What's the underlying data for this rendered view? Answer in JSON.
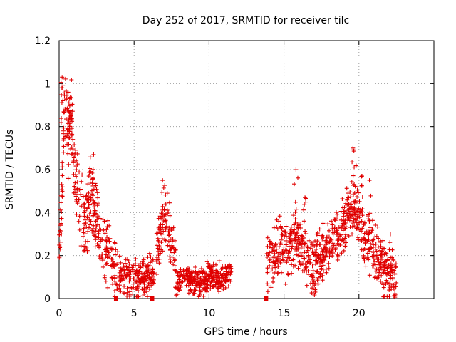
{
  "chart_data": {
    "type": "scatter",
    "title": "Day 252 of 2017, SRMTID for receiver tilc",
    "xlabel": "GPS time / hours",
    "ylabel": "SRMTID / TECUs",
    "xlim": [
      0,
      25
    ],
    "ylim": [
      0,
      1.2
    ],
    "x_ticks": [
      0,
      5,
      10,
      15,
      20
    ],
    "x_tick_labels": [
      "0",
      "5",
      "10",
      "15",
      "20"
    ],
    "y_ticks": [
      0,
      0.2,
      0.4,
      0.6,
      0.8,
      1,
      1.2
    ],
    "y_tick_labels": [
      "0",
      "0.2",
      "0.4",
      "0.6",
      "0.8",
      "1",
      "1.2"
    ],
    "grid": true,
    "marker": "plus",
    "color": "#e00000",
    "series": [
      {
        "name": "SRMTID",
        "segments": [
          {
            "x": [
              0.0,
              0.2,
              0.4,
              0.6,
              0.8,
              1.0,
              1.2,
              1.5,
              1.8,
              2.1,
              2.4,
              2.7,
              3.0,
              3.3,
              3.6,
              3.9
            ],
            "y": [
              0.2,
              0.55,
              0.95,
              0.72,
              0.88,
              0.6,
              0.5,
              0.42,
              0.35,
              0.5,
              0.38,
              0.3,
              0.25,
              0.2,
              0.15,
              0.12
            ],
            "spread": 0.12
          },
          {
            "x": [
              4.0,
              4.5,
              5.0,
              5.5,
              6.0,
              6.4
            ],
            "y": [
              0.12,
              0.1,
              0.1,
              0.09,
              0.11,
              0.1
            ],
            "spread": 0.07
          },
          {
            "x": [
              6.5,
              6.8,
              7.0,
              7.2,
              7.5,
              7.8
            ],
            "y": [
              0.2,
              0.3,
              0.4,
              0.35,
              0.25,
              0.12
            ],
            "spread": 0.1
          },
          {
            "x": [
              7.8,
              8.5,
              9.2,
              10.0,
              10.8,
              11.5
            ],
            "y": [
              0.08,
              0.09,
              0.07,
              0.1,
              0.1,
              0.12
            ],
            "spread": 0.05
          },
          {
            "x": [
              13.8,
              14.3,
              14.8,
              15.3,
              15.8,
              16.2,
              16.6,
              17.0,
              17.5,
              18.0
            ],
            "y": [
              0.18,
              0.2,
              0.25,
              0.2,
              0.3,
              0.22,
              0.18,
              0.15,
              0.2,
              0.22
            ],
            "spread": 0.1
          },
          {
            "x": [
              18.0,
              18.5,
              19.0,
              19.5,
              20.0,
              20.5,
              21.0,
              21.5,
              22.0,
              22.5
            ],
            "y": [
              0.22,
              0.28,
              0.35,
              0.45,
              0.35,
              0.25,
              0.22,
              0.18,
              0.1,
              0.08
            ],
            "spread": 0.1
          }
        ],
        "peaks": [
          {
            "x": 0.2,
            "y": 1.03
          },
          {
            "x": 0.25,
            "y": 0.99
          },
          {
            "x": 0.6,
            "y": 0.96
          },
          {
            "x": 0.7,
            "y": 0.93
          },
          {
            "x": 1.1,
            "y": 0.68
          },
          {
            "x": 2.3,
            "y": 0.67
          },
          {
            "x": 6.9,
            "y": 0.55
          },
          {
            "x": 15.8,
            "y": 0.6
          },
          {
            "x": 16.4,
            "y": 0.47
          },
          {
            "x": 19.6,
            "y": 0.7
          },
          {
            "x": 19.8,
            "y": 0.62
          },
          {
            "x": 20.2,
            "y": 0.57
          },
          {
            "x": 20.7,
            "y": 0.55
          },
          {
            "x": 22.1,
            "y": 0.3
          }
        ],
        "gap_points": [
          {
            "x": 3.8,
            "y": 0.0
          },
          {
            "x": 6.2,
            "y": 0.0
          },
          {
            "x": 13.8,
            "y": 0.0
          }
        ]
      }
    ]
  }
}
